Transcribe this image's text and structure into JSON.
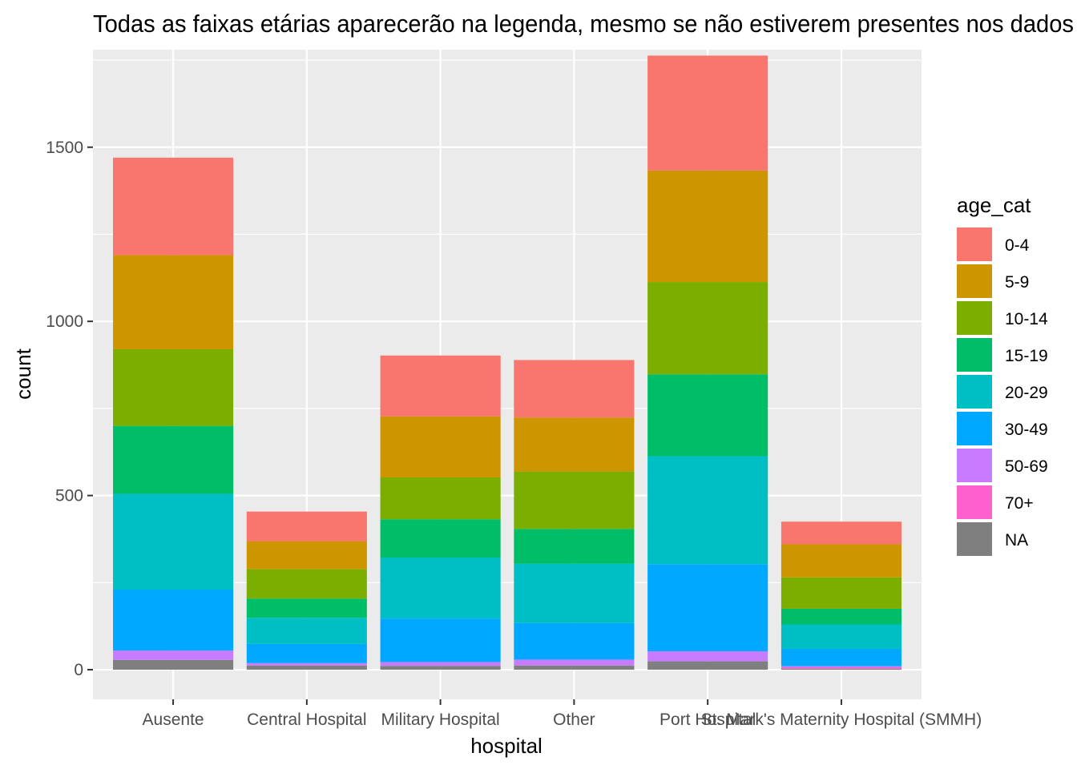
{
  "chart_data": {
    "type": "bar",
    "stacked": true,
    "title": "Todas as faixas etárias aparecerão na legenda, mesmo se não estiverem presentes nos dados",
    "xlabel": "hospital",
    "ylabel": "count",
    "ylim": [
      -85,
      1780
    ],
    "y_ticks": [
      0,
      500,
      1000,
      1500
    ],
    "grid": true,
    "legend_title": "age_cat",
    "legend_position": "right",
    "categories": [
      "Ausente",
      "Central Hospital",
      "Military Hospital",
      "Other",
      "Port Hospital",
      "St. Mark's Maternity Hospital (SMMH)"
    ],
    "series": [
      {
        "name": "0-4",
        "color": "#F8766D",
        "values": [
          280,
          85,
          175,
          165,
          330,
          65
        ]
      },
      {
        "name": "5-9",
        "color": "#CD9600",
        "values": [
          270,
          80,
          175,
          155,
          320,
          95
        ]
      },
      {
        "name": "10-14",
        "color": "#7CAE00",
        "values": [
          220,
          85,
          120,
          165,
          265,
          90
        ]
      },
      {
        "name": "15-19",
        "color": "#00BE67",
        "values": [
          195,
          55,
          110,
          100,
          235,
          45
        ]
      },
      {
        "name": "20-29",
        "color": "#00BFC4",
        "values": [
          275,
          75,
          175,
          170,
          310,
          70
        ]
      },
      {
        "name": "30-49",
        "color": "#00A9FF",
        "values": [
          175,
          55,
          125,
          105,
          250,
          50
        ]
      },
      {
        "name": "50-69",
        "color": "#C77CFF",
        "values": [
          27,
          7,
          11,
          17,
          29,
          3
        ]
      },
      {
        "name": "70+",
        "color": "#FF61CC",
        "values": [
          0,
          0,
          0,
          0,
          0,
          4
        ]
      },
      {
        "name": "NA",
        "color": "#7F7F7F",
        "values": [
          28,
          12,
          11,
          12,
          24,
          3
        ]
      }
    ]
  }
}
